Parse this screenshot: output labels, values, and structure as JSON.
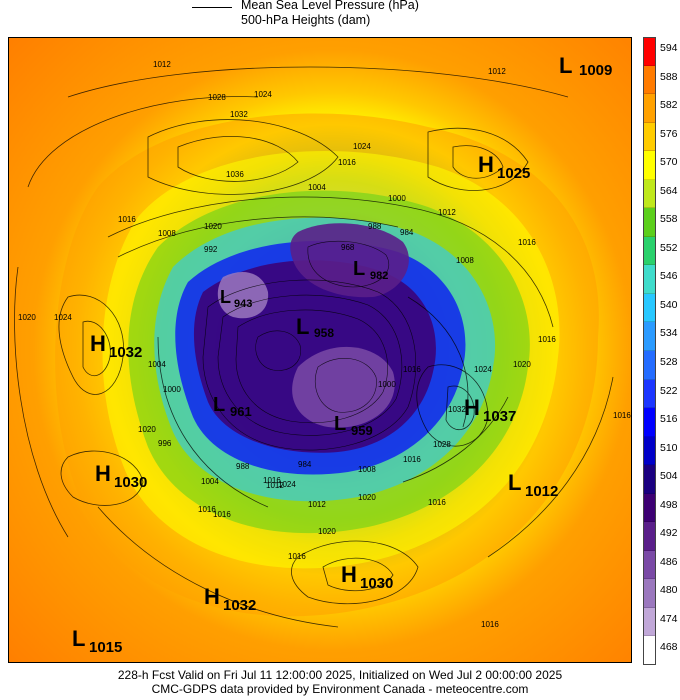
{
  "header": {
    "line1": "Mean Sea Level Pressure (hPa)",
    "line2": "500-hPa Heights (dam)"
  },
  "footer": {
    "line1": "228-h Fcst Valid on Fri Jul 11 12:00:00 2025, Initialized on Wed Jul  2 00:00:00 2025",
    "line2": "CMC-GDPS data provided by Environment Canada - meteocentre.com"
  },
  "colorbar": {
    "levels": [
      "594",
      "588",
      "582",
      "576",
      "570",
      "564",
      "558",
      "552",
      "546",
      "540",
      "534",
      "528",
      "522",
      "516",
      "510",
      "504",
      "498",
      "492",
      "486",
      "480",
      "474",
      "468"
    ],
    "colors": [
      "#ff0000",
      "#ff7b00",
      "#ffa100",
      "#ffcc00",
      "#ffff00",
      "#bfe81c",
      "#5ccf1c",
      "#2ad16c",
      "#3fdccb",
      "#28c8ff",
      "#2b9bff",
      "#246cff",
      "#1c36ff",
      "#0000ff",
      "#0000c8",
      "#1a0080",
      "#3d0073",
      "#5a1f8a",
      "#7a4aa6",
      "#9b78be",
      "#c1a8d8",
      "#ffffff"
    ]
  },
  "pressure_systems": [
    {
      "type": "L",
      "value": "1009"
    },
    {
      "type": "H",
      "value": "1025"
    },
    {
      "type": "L",
      "value": "943"
    },
    {
      "type": "L",
      "value": "958"
    },
    {
      "type": "L",
      "value": "982"
    },
    {
      "type": "H",
      "value": "1032"
    },
    {
      "type": "H",
      "value": "1037"
    },
    {
      "type": "L",
      "value": "961"
    },
    {
      "type": "L",
      "value": "959"
    },
    {
      "type": "H",
      "value": "1030"
    },
    {
      "type": "L",
      "value": "1012"
    },
    {
      "type": "H",
      "value": "1030"
    },
    {
      "type": "H",
      "value": "1032"
    },
    {
      "type": "L",
      "value": "1015"
    }
  ],
  "isobar_labels": [
    "1012",
    "1012",
    "1028",
    "1024",
    "1032",
    "1036",
    "1016",
    "1004",
    "1020",
    "992",
    "1008",
    "1016",
    "988",
    "1000",
    "984",
    "1012",
    "1016",
    "968",
    "1024",
    "1008",
    "1016",
    "1020",
    "1024",
    "1000",
    "1020",
    "996",
    "1004",
    "1024",
    "1020",
    "1016",
    "1028",
    "1032",
    "1016",
    "1008",
    "1016",
    "1004",
    "1012",
    "1016",
    "988",
    "984",
    "1000",
    "1016",
    "1012",
    "1020",
    "1016",
    "1020",
    "1016",
    "1024",
    "1016",
    "1016"
  ],
  "map": {
    "description_colors": {
      "outer": "#ff7b00",
      "ring": "#ffa100",
      "inner_low": "#1a0080"
    }
  }
}
